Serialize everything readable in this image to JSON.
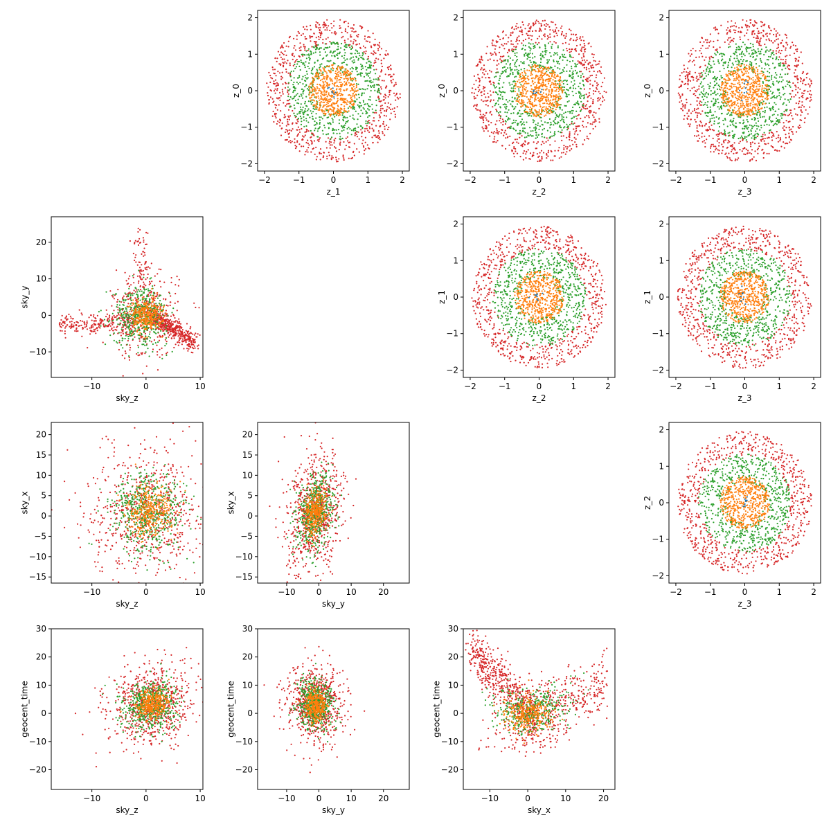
{
  "chart_data": [
    {
      "type": "scatter",
      "panel": "0-1",
      "xlabel": "z_1",
      "ylabel": "z_0",
      "xlim": [
        -2.2,
        2.2
      ],
      "ylim": [
        -2.2,
        2.2
      ],
      "xticks": [
        -2,
        -1,
        0,
        1,
        2
      ],
      "yticks": [
        -2,
        -1,
        0,
        1,
        2
      ],
      "dist": {
        "kind": "shells"
      }
    },
    {
      "type": "scatter",
      "panel": "0-2",
      "xlabel": "z_2",
      "ylabel": "z_0",
      "xlim": [
        -2.2,
        2.2
      ],
      "ylim": [
        -2.2,
        2.2
      ],
      "xticks": [
        -2,
        -1,
        0,
        1,
        2
      ],
      "yticks": [
        -2,
        -1,
        0,
        1,
        2
      ],
      "dist": {
        "kind": "shells"
      }
    },
    {
      "type": "scatter",
      "panel": "0-3",
      "xlabel": "z_3",
      "ylabel": "z_0",
      "xlim": [
        -2.2,
        2.2
      ],
      "ylim": [
        -2.2,
        2.2
      ],
      "xticks": [
        -2,
        -1,
        0,
        1,
        2
      ],
      "yticks": [
        -2,
        -1,
        0,
        1,
        2
      ],
      "dist": {
        "kind": "shells"
      }
    },
    {
      "type": "scatter",
      "panel": "1-0",
      "xlabel": "sky_z",
      "ylabel": "sky_y",
      "xlim": [
        -17.5,
        10.5
      ],
      "ylim": [
        -17,
        27
      ],
      "xticks": [
        -10,
        0,
        10
      ],
      "yticks": [
        -10,
        0,
        10,
        20
      ],
      "dist": {
        "kind": "skyzy"
      }
    },
    {
      "type": "scatter",
      "panel": "1-2",
      "xlabel": "z_2",
      "ylabel": "z_1",
      "xlim": [
        -2.2,
        2.2
      ],
      "ylim": [
        -2.2,
        2.2
      ],
      "xticks": [
        -2,
        -1,
        0,
        1,
        2
      ],
      "yticks": [
        -2,
        -1,
        0,
        1,
        2
      ],
      "dist": {
        "kind": "shells"
      }
    },
    {
      "type": "scatter",
      "panel": "1-3",
      "xlabel": "z_3",
      "ylabel": "z_1",
      "xlim": [
        -2.2,
        2.2
      ],
      "ylim": [
        -2.2,
        2.2
      ],
      "xticks": [
        -2,
        -1,
        0,
        1,
        2
      ],
      "yticks": [
        -2,
        -1,
        0,
        1,
        2
      ],
      "dist": {
        "kind": "shells"
      }
    },
    {
      "type": "scatter",
      "panel": "2-0",
      "xlabel": "sky_z",
      "ylabel": "sky_x",
      "xlim": [
        -17.5,
        10.5
      ],
      "ylim": [
        -16.5,
        23
      ],
      "xticks": [
        -10,
        0,
        10
      ],
      "yticks": [
        -15,
        -10,
        -5,
        0,
        5,
        10,
        15,
        20
      ],
      "dist": {
        "kind": "blob",
        "cx": 0.5,
        "cy": 1,
        "sx": 5.5,
        "sy": 8,
        "tilt": 0
      }
    },
    {
      "type": "scatter",
      "panel": "2-1",
      "xlabel": "sky_y",
      "ylabel": "sky_x",
      "xlim": [
        -19,
        28
      ],
      "ylim": [
        -16.5,
        23
      ],
      "xticks": [
        -10,
        0,
        10,
        20
      ],
      "yticks": [
        -15,
        -10,
        -5,
        0,
        5,
        10,
        15,
        20
      ],
      "dist": {
        "kind": "blob",
        "cx": -1,
        "cy": 1,
        "sx": 4.5,
        "sy": 7,
        "tilt": 0.4
      }
    },
    {
      "type": "scatter",
      "panel": "2-3",
      "xlabel": "z_3",
      "ylabel": "z_2",
      "xlim": [
        -2.2,
        2.2
      ],
      "ylim": [
        -2.2,
        2.2
      ],
      "xticks": [
        -2,
        -1,
        0,
        1,
        2
      ],
      "yticks": [
        -2,
        -1,
        0,
        1,
        2
      ],
      "dist": {
        "kind": "shells"
      }
    },
    {
      "type": "scatter",
      "panel": "3-0",
      "xlabel": "sky_z",
      "ylabel": "geocent_time",
      "xlim": [
        -17.5,
        10.5
      ],
      "ylim": [
        -27,
        30
      ],
      "xticks": [
        -10,
        0,
        10
      ],
      "yticks": [
        -20,
        -10,
        0,
        10,
        20,
        30
      ],
      "dist": {
        "kind": "blob",
        "cx": 1,
        "cy": 3,
        "sx": 4,
        "sy": 7,
        "tilt": 0.25
      }
    },
    {
      "type": "scatter",
      "panel": "3-1",
      "xlabel": "sky_y",
      "ylabel": "geocent_time",
      "xlim": [
        -19,
        28
      ],
      "ylim": [
        -27,
        30
      ],
      "xticks": [
        -10,
        0,
        10,
        20
      ],
      "yticks": [
        -20,
        -10,
        0,
        10,
        20,
        30
      ],
      "dist": {
        "kind": "blob",
        "cx": -1,
        "cy": 3,
        "sx": 4.5,
        "sy": 7,
        "tilt": 0
      }
    },
    {
      "type": "scatter",
      "panel": "3-2",
      "xlabel": "sky_x",
      "ylabel": "geocent_time",
      "xlim": [
        -17,
        23
      ],
      "ylim": [
        -27,
        30
      ],
      "xticks": [
        -10,
        0,
        10,
        20
      ],
      "yticks": [
        -20,
        -10,
        0,
        10,
        20,
        30
      ],
      "dist": {
        "kind": "vshape"
      }
    }
  ],
  "colors": {
    "series_outer": "#d62728",
    "series_middle": "#2ca02c",
    "series_inner": "#ff7f0e",
    "series_core": "#1f77b4",
    "axes": "#000000",
    "background": "#ffffff"
  }
}
